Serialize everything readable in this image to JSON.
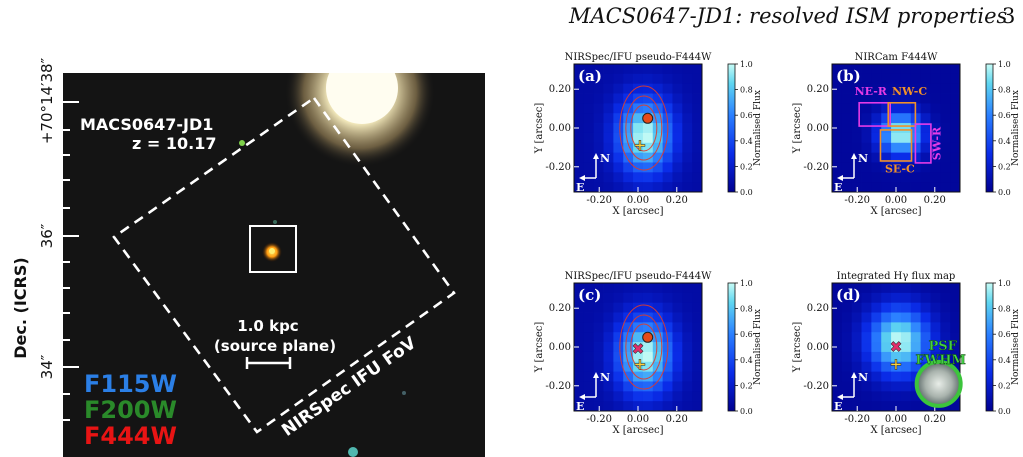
{
  "header": {
    "running_title": "MACS0647-JD1: resolved ISM properties",
    "page_number": "3"
  },
  "left_image": {
    "object_name": "MACS0647-JD1",
    "redshift": "z = 10.17",
    "dec_axis_label": "Dec. (ICRS)",
    "dec_ticks": [
      "+70°14′38″",
      "36″",
      "34″"
    ],
    "scalebar_label_1": "1.0 kpc",
    "scalebar_label_2": "(source plane)",
    "fov_label": "NIRSpec IFU FoV",
    "filters": [
      {
        "name": "F115W",
        "color": "#2b7fe6"
      },
      {
        "name": "F200W",
        "color": "#2a8a2a"
      },
      {
        "name": "F444W",
        "color": "#e81414"
      }
    ]
  },
  "panels": [
    {
      "key": "a",
      "tag": "(a)",
      "title": "NIRSpec/IFU pseudo-F444W",
      "regions": []
    },
    {
      "key": "b",
      "tag": "(b)",
      "title": "NIRCam F444W",
      "regions": [
        "NE-R",
        "NW-C",
        "SE-C",
        "SW-R"
      ]
    },
    {
      "key": "c",
      "tag": "(c)",
      "title": "NIRSpec/IFU pseudo-F444W",
      "regions": []
    },
    {
      "key": "d",
      "tag": "(d)",
      "title": "Integrated Hγ flux map",
      "regions": [],
      "psf_line1": "PSF",
      "psf_line2": "FWHM"
    }
  ],
  "axes": {
    "xlabel": "X [arcsec]",
    "ylabel": "Y [arcsec]",
    "xticks": [
      "-0.20",
      "0.00",
      "0.20"
    ],
    "yticks": [
      "0.20",
      "0.00",
      "-0.20"
    ],
    "colorbar_label": "Normalised Flux",
    "colorbar_ticks": [
      "1.0",
      "0.8",
      "0.6",
      "0.4",
      "0.2",
      "0.0"
    ],
    "compass_n": "N",
    "compass_e": "E"
  }
}
